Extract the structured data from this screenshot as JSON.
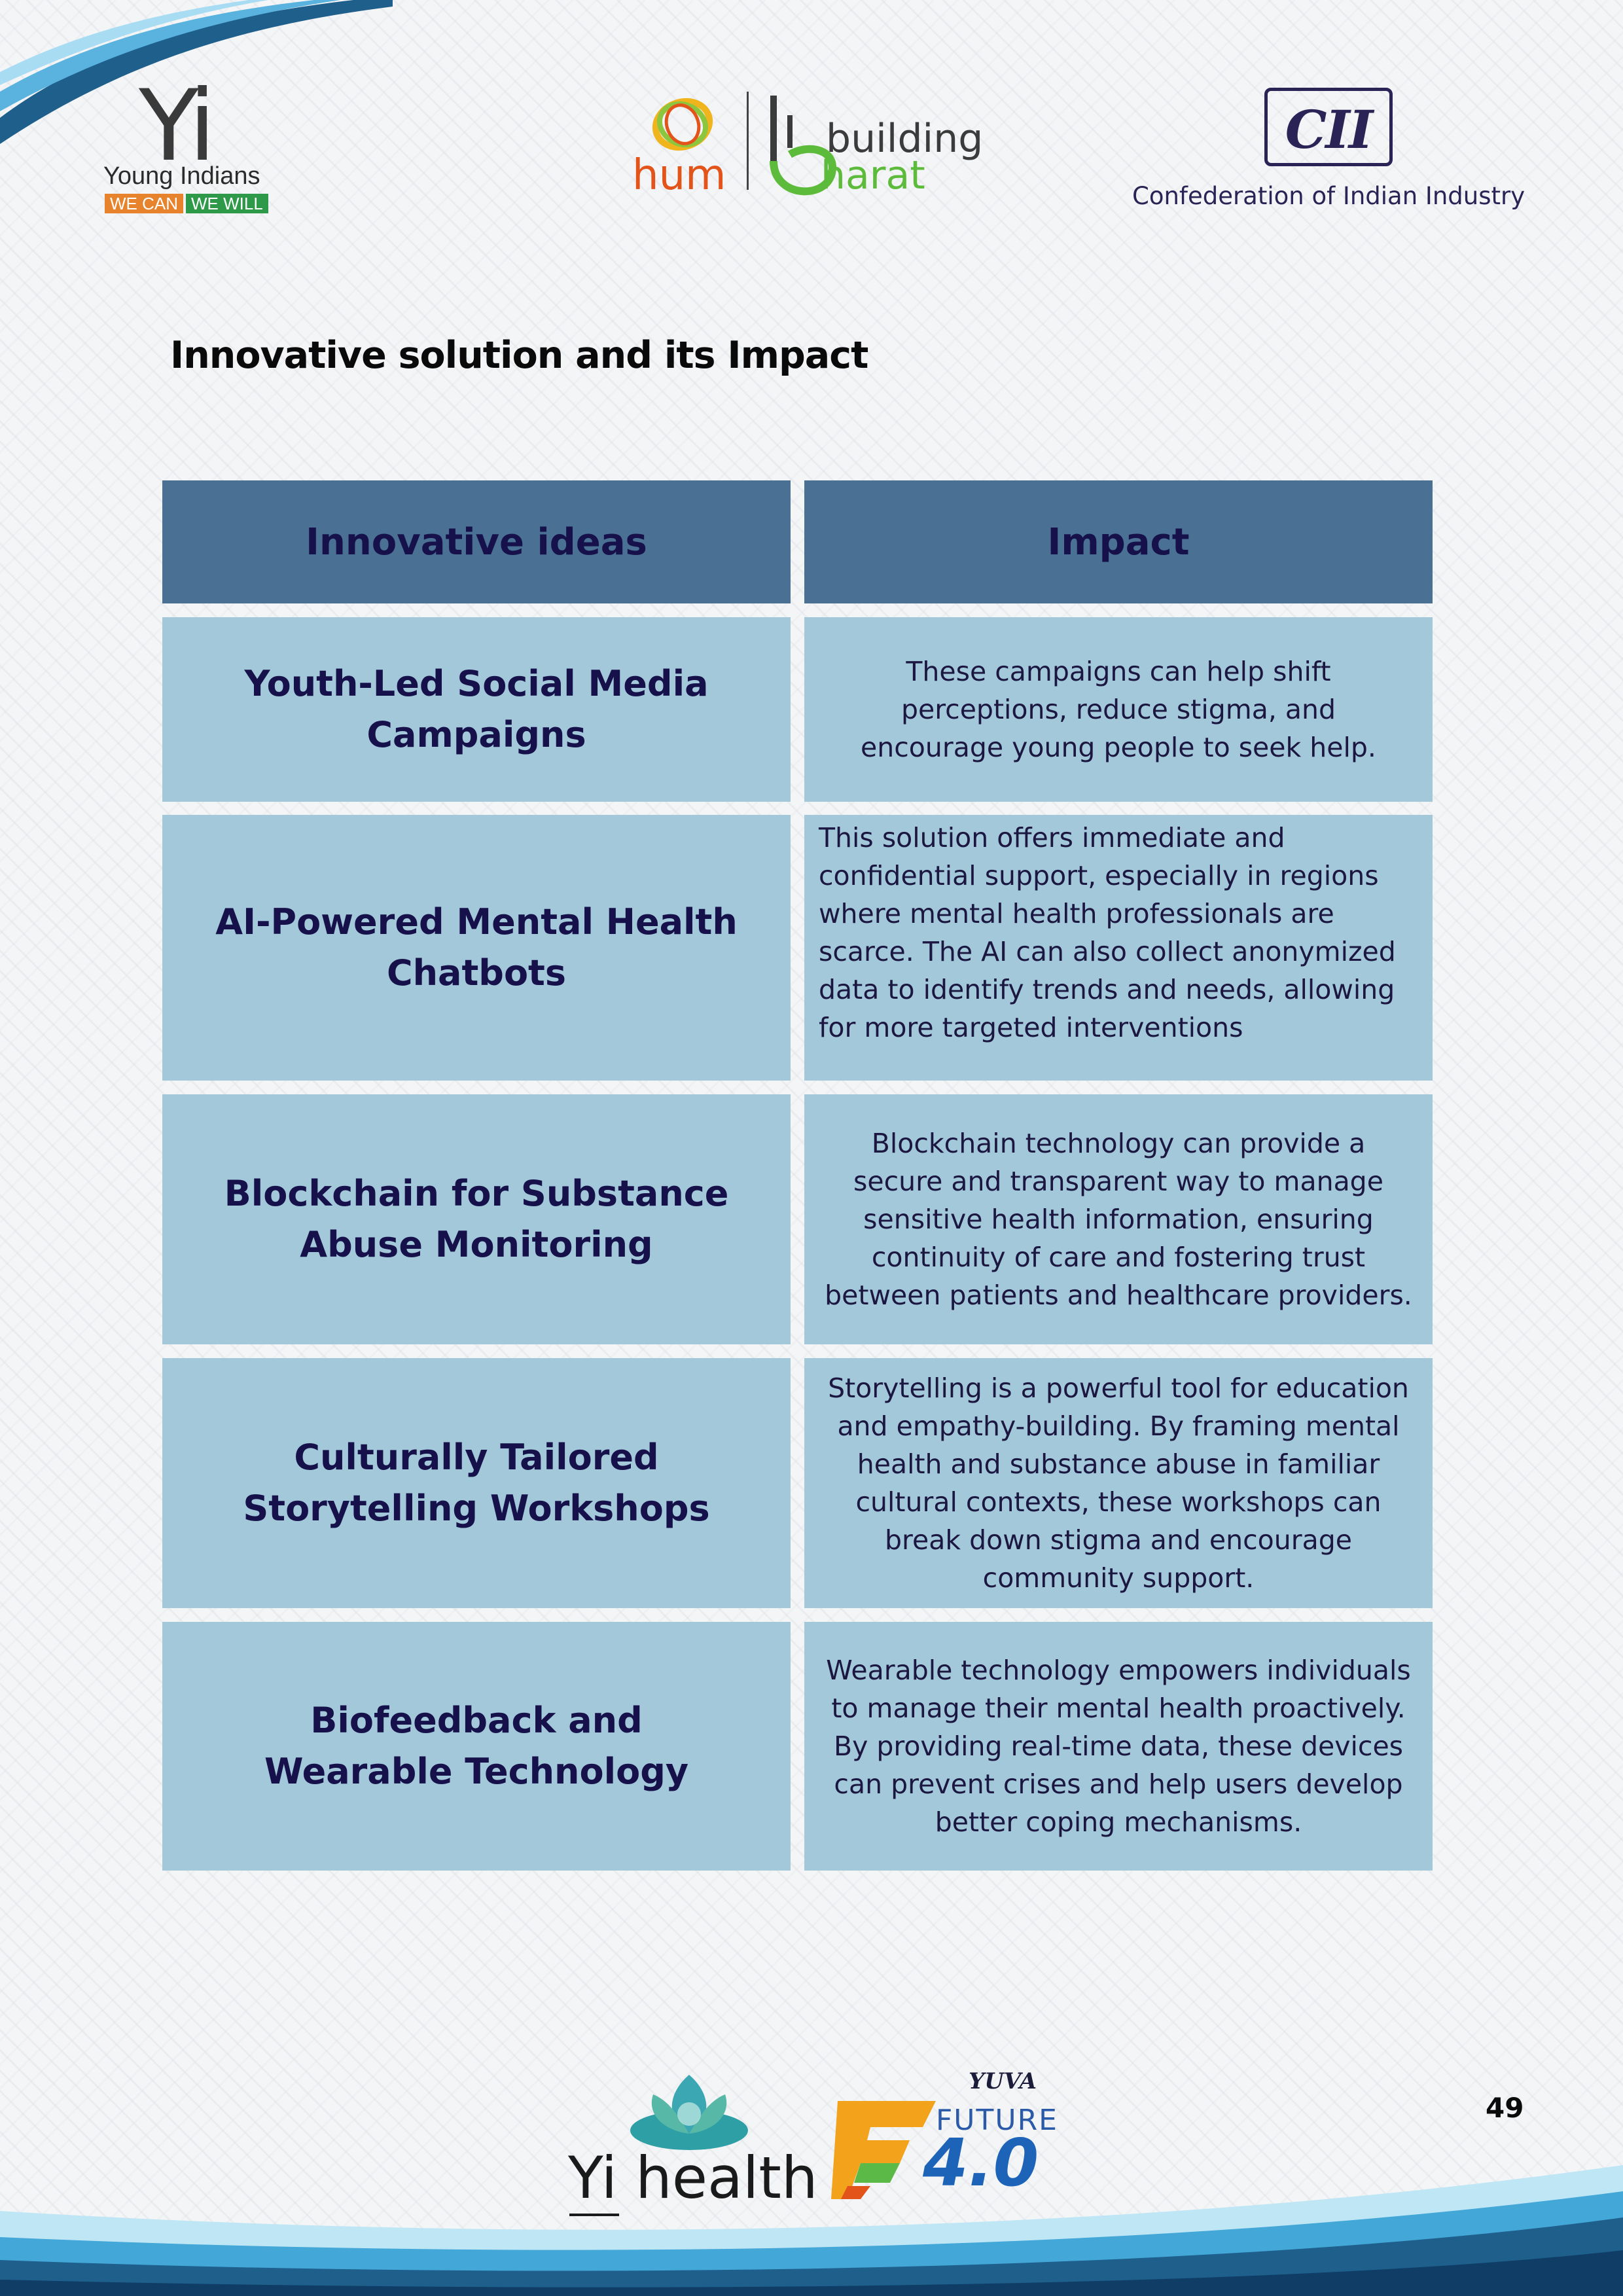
{
  "header": {
    "yi_logo": {
      "mark": "Yi",
      "name": "Young Indians",
      "tag_left": "WE CAN",
      "tag_right": "WE WILL"
    },
    "hbb_logo": {
      "hum": "hum",
      "building": "building",
      "bharat": "harat"
    },
    "cii_logo": {
      "mark": "CII",
      "caption": "Confederation of Indian Industry"
    }
  },
  "page_title": "Innovative solution and its Impact",
  "table": {
    "headers": [
      "Innovative ideas",
      "Impact"
    ],
    "rows": [
      {
        "idea": "Youth-Led Social Media Campaigns",
        "impact": "These campaigns can help shift perceptions, reduce stigma, and encourage young people to seek help."
      },
      {
        "idea": "AI-Powered Mental Health Chatbots",
        "impact": "This solution offers immediate and confidential support, especially in regions where mental health professionals are scarce. The AI can also collect anonymized data to identify trends and needs, allowing for more targeted interventions"
      },
      {
        "idea": "Blockchain for Substance Abuse Monitoring",
        "impact": "Blockchain technology can provide a secure and transparent way to manage sensitive health information, ensuring continuity of care and fostering trust between patients and healthcare providers."
      },
      {
        "idea": "Culturally Tailored Storytelling Workshops",
        "impact": "Storytelling is a powerful tool for education and empathy-building. By framing mental health and substance abuse in familiar cultural contexts, these workshops can break down stigma and encourage community support."
      },
      {
        "idea": "Biofeedback and Wearable Technology",
        "impact": "Wearable technology empowers individuals to manage their mental health proactively. By providing real-time data, these devices can prevent crises and help users develop better coping mechanisms."
      }
    ]
  },
  "footer": {
    "yihealth": {
      "yi": "Yi",
      "health": "health"
    },
    "future": {
      "yuva": "YUVA",
      "future": "FUTURE",
      "version": "4.0"
    },
    "page_number": "49"
  },
  "colors": {
    "header_cell": "#4a7094",
    "body_cell": "#a3c8da",
    "text_navy": "#16114a"
  }
}
